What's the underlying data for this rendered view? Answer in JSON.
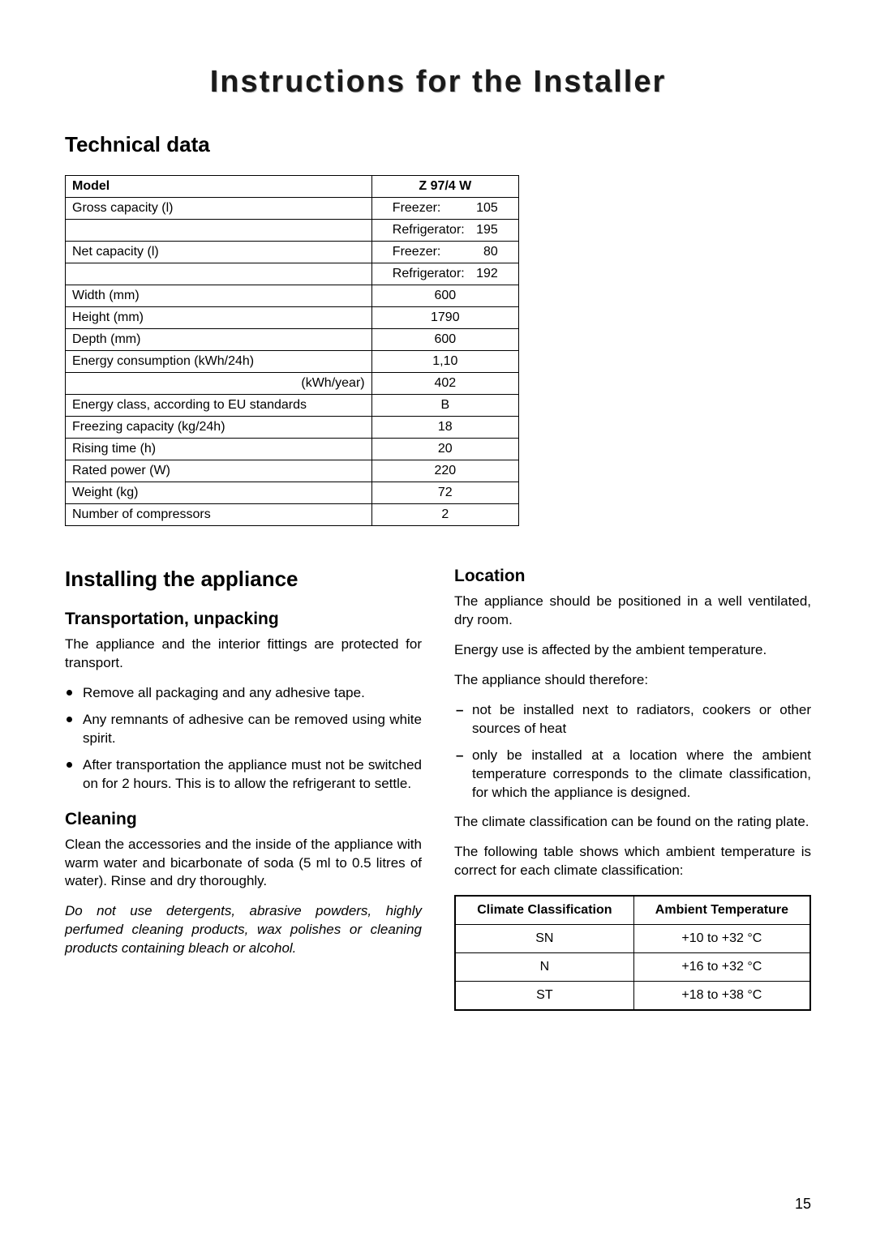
{
  "title": "Instructions for the Installer",
  "sections": {
    "technical_data": {
      "heading": "Technical data",
      "table": {
        "columns": [
          "Model",
          "Z 97/4 W"
        ],
        "rows": [
          {
            "label": "Gross capacity (l)",
            "value_label": "Freezer:",
            "value_num": "105"
          },
          {
            "label": "",
            "value_label": "Refrigerator:",
            "value_num": "195"
          },
          {
            "label": "Net capacity (l)",
            "value_label": "Freezer:",
            "value_num": "80"
          },
          {
            "label": "",
            "value_label": "Refrigerator:",
            "value_num": "192"
          },
          {
            "label": "Width (mm)",
            "value": "600"
          },
          {
            "label": "Height (mm)",
            "value": "1790"
          },
          {
            "label": "Depth (mm)",
            "value": "600"
          },
          {
            "label": "Energy consumption (kWh/24h)",
            "value": "1,10"
          },
          {
            "label": "(kWh/year)",
            "value": "402",
            "align_right": true
          },
          {
            "label": "Energy class, according to EU standards",
            "value": "B"
          },
          {
            "label": "Freezing capacity (kg/24h)",
            "value": "18"
          },
          {
            "label": "Rising time (h)",
            "value": "20"
          },
          {
            "label": "Rated power (W)",
            "value": "220"
          },
          {
            "label": "Weight (kg)",
            "value": "72"
          },
          {
            "label": "Number of compressors",
            "value": "2"
          }
        ]
      }
    },
    "installing": {
      "heading": "Installing the appliance",
      "transport": {
        "heading": "Transportation, unpacking",
        "intro": "The appliance and the interior fittings are protected for transport.",
        "bullets": [
          "Remove all packaging and any adhesive tape.",
          "Any remnants of adhesive can be removed using white spirit.",
          "After transportation the appliance must not be switched on for 2 hours. This is to allow the refrigerant to settle."
        ]
      },
      "cleaning": {
        "heading": "Cleaning",
        "p1": "Clean the accessories and the inside of the appliance with warm water and bicarbonate of soda (5 ml to 0.5 litres of water). Rinse and dry thoroughly.",
        "p2": "Do not use detergents, abrasive powders, highly perfumed cleaning products, wax polishes or cleaning products containing bleach or alcohol."
      },
      "location": {
        "heading": "Location",
        "p1": "The appliance should be positioned in a well ventilated, dry room.",
        "p2": "Energy use is affected by the ambient temperature.",
        "p3": "The appliance should therefore:",
        "bullets": [
          "not be installed next to radiators, cookers or other sources of heat",
          "only be installed at a location where the ambient temperature corresponds to the climate classification, for which the appliance is designed."
        ],
        "p4": "The climate classification can be found on the rating plate.",
        "p5": "The following table shows which ambient temperature is correct for each climate classification:",
        "table": {
          "columns": [
            "Climate Classification",
            "Ambient Temperature"
          ],
          "rows": [
            {
              "c": "SN",
              "t": "+10 to +32 °C"
            },
            {
              "c": "N",
              "t": "+16 to +32 °C"
            },
            {
              "c": "ST",
              "t": "+18 to +38 °C"
            }
          ]
        }
      }
    }
  },
  "page_number": "15"
}
